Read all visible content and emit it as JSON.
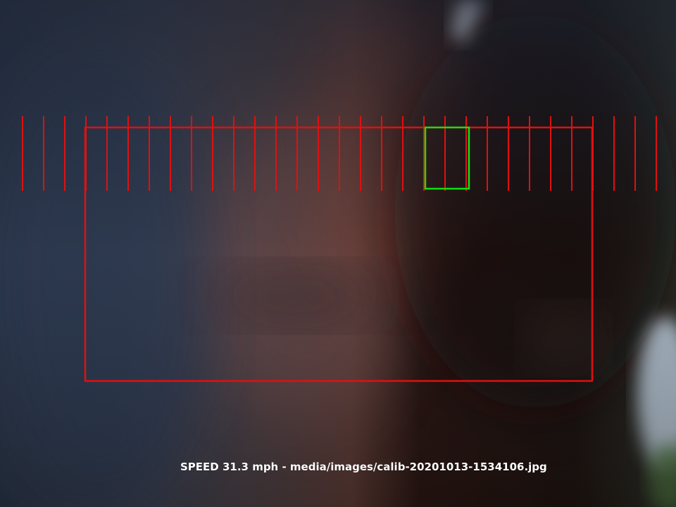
{
  "overlay": {
    "caption": "SPEED 31.3 mph - media/images/calib-20201013-1534106.jpg",
    "colors": {
      "calibration_lines": "#e01010",
      "detection_box": "#10e010",
      "caption_text": "#ffffff"
    }
  }
}
